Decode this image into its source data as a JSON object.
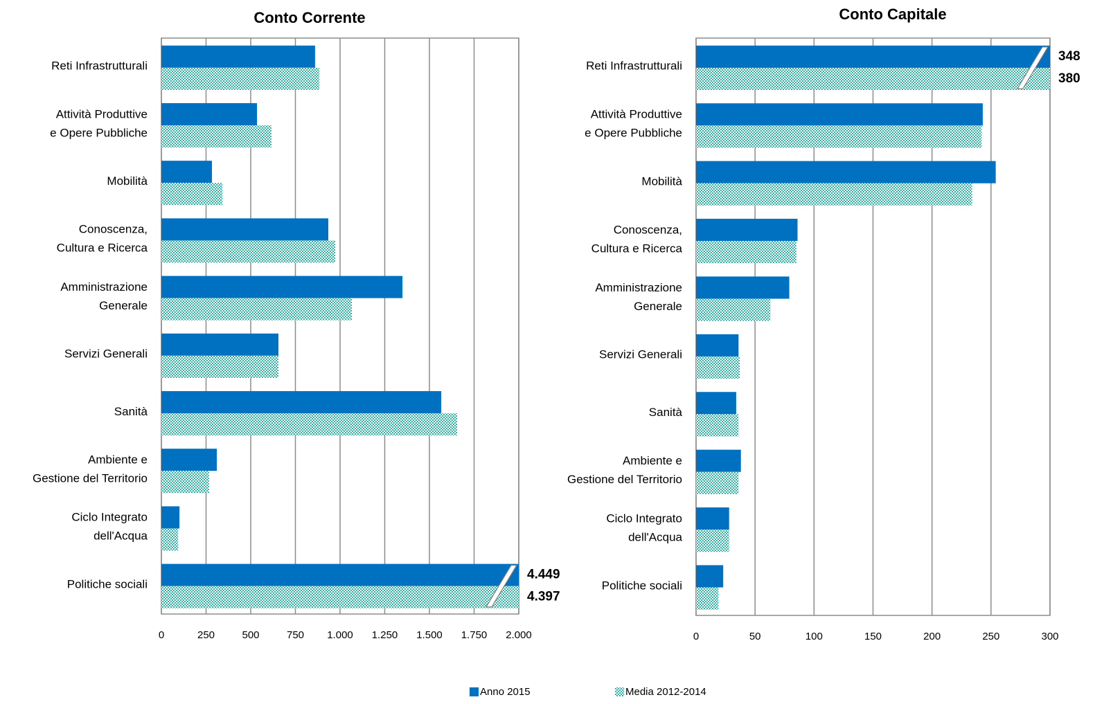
{
  "chart_data": [
    {
      "type": "barh",
      "title": "Conto Corrente",
      "categories": [
        "Reti Infrastrutturali",
        "Attività Produttive\ne Opere Pubbliche",
        "Mobilità",
        "Conoscenza,\nCultura e Ricerca",
        "Amministrazione\nGenerale",
        "Servizi Generali",
        "Sanità",
        "Ambiente e\nGestione del Territorio",
        "Ciclo Integrato\ndell'Acqua",
        "Politiche sociali"
      ],
      "series": [
        {
          "name": "Anno 2015",
          "color": "#0070c0",
          "values": [
            860,
            535,
            283,
            934,
            1349,
            655,
            1566,
            310,
            101,
            4449
          ],
          "value_labels": [
            null,
            null,
            null,
            null,
            null,
            null,
            null,
            null,
            null,
            "4.449"
          ]
        },
        {
          "name": "Media 2012-2014",
          "color": "#2db3a6",
          "pattern": "checker",
          "values": [
            884,
            616,
            341,
            973,
            1066,
            655,
            1655,
            267,
            93,
            4397
          ],
          "value_labels": [
            null,
            null,
            null,
            null,
            null,
            null,
            null,
            null,
            null,
            "4.397"
          ]
        }
      ],
      "xlim": [
        0,
        2000
      ],
      "xticks": [
        0,
        250,
        500,
        750,
        {
          "value": 1000,
          "label": "1.000"
        },
        {
          "value": 1250,
          "label": "1.250"
        },
        {
          "value": 1500,
          "label": "1.500"
        },
        {
          "value": 1750,
          "label": "1.750"
        },
        {
          "value": 2000,
          "label": "2.000"
        }
      ],
      "grid": true
    },
    {
      "type": "barh",
      "title": "Conto Capitale",
      "categories": [
        "Reti Infrastrutturali",
        "Attività Produttive\ne Opere Pubbliche",
        "Mobilità",
        "Conoscenza,\nCultura e Ricerca",
        "Amministrazione\nGenerale",
        "Servizi Generali",
        "Sanità",
        "Ambiente e\nGestione del Territorio",
        "Ciclo Integrato\ndell'Acqua",
        "Politiche sociali"
      ],
      "series": [
        {
          "name": "Anno 2015",
          "color": "#0070c0",
          "values": [
            348,
            243,
            254,
            86,
            79,
            36,
            34,
            38,
            28,
            23
          ],
          "value_labels": [
            "348",
            null,
            null,
            null,
            null,
            null,
            null,
            null,
            null,
            null
          ]
        },
        {
          "name": "Media 2012-2014",
          "color": "#2db3a6",
          "pattern": "checker",
          "values": [
            380,
            242,
            234,
            85,
            63,
            37,
            36,
            36,
            28,
            19
          ],
          "value_labels": [
            "380",
            null,
            null,
            null,
            null,
            null,
            null,
            null,
            null,
            null
          ]
        }
      ],
      "xlim": [
        0,
        300
      ],
      "xticks": [
        0,
        50,
        100,
        150,
        200,
        250,
        300
      ],
      "grid": true
    }
  ]
}
